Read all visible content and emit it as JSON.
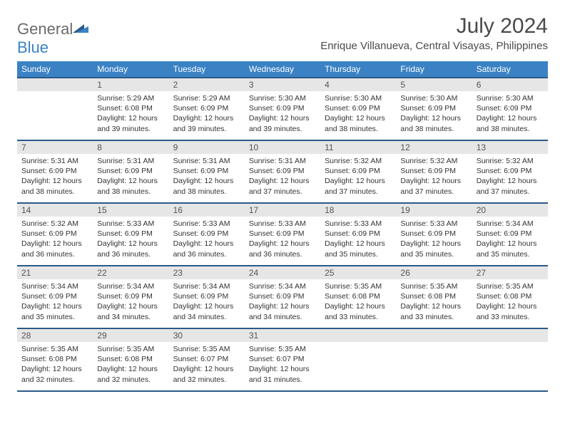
{
  "logo": {
    "text1": "General",
    "text2": "Blue"
  },
  "title": "July 2024",
  "location": "Enrique Villanueva, Central Visayas, Philippines",
  "colors": {
    "header_bg": "#3b82c4",
    "header_text": "#ffffff",
    "row_divider": "#2a5a8a",
    "daynum_bg": "#e6e6e6",
    "logo_gray": "#6b6b6b",
    "logo_blue": "#3b82c4"
  },
  "weekdays": [
    "Sunday",
    "Monday",
    "Tuesday",
    "Wednesday",
    "Thursday",
    "Friday",
    "Saturday"
  ],
  "start_offset": 1,
  "days": [
    {
      "n": 1,
      "sunrise": "5:29 AM",
      "sunset": "6:08 PM",
      "daylight": "12 hours and 39 minutes."
    },
    {
      "n": 2,
      "sunrise": "5:29 AM",
      "sunset": "6:09 PM",
      "daylight": "12 hours and 39 minutes."
    },
    {
      "n": 3,
      "sunrise": "5:30 AM",
      "sunset": "6:09 PM",
      "daylight": "12 hours and 39 minutes."
    },
    {
      "n": 4,
      "sunrise": "5:30 AM",
      "sunset": "6:09 PM",
      "daylight": "12 hours and 38 minutes."
    },
    {
      "n": 5,
      "sunrise": "5:30 AM",
      "sunset": "6:09 PM",
      "daylight": "12 hours and 38 minutes."
    },
    {
      "n": 6,
      "sunrise": "5:30 AM",
      "sunset": "6:09 PM",
      "daylight": "12 hours and 38 minutes."
    },
    {
      "n": 7,
      "sunrise": "5:31 AM",
      "sunset": "6:09 PM",
      "daylight": "12 hours and 38 minutes."
    },
    {
      "n": 8,
      "sunrise": "5:31 AM",
      "sunset": "6:09 PM",
      "daylight": "12 hours and 38 minutes."
    },
    {
      "n": 9,
      "sunrise": "5:31 AM",
      "sunset": "6:09 PM",
      "daylight": "12 hours and 38 minutes."
    },
    {
      "n": 10,
      "sunrise": "5:31 AM",
      "sunset": "6:09 PM",
      "daylight": "12 hours and 37 minutes."
    },
    {
      "n": 11,
      "sunrise": "5:32 AM",
      "sunset": "6:09 PM",
      "daylight": "12 hours and 37 minutes."
    },
    {
      "n": 12,
      "sunrise": "5:32 AM",
      "sunset": "6:09 PM",
      "daylight": "12 hours and 37 minutes."
    },
    {
      "n": 13,
      "sunrise": "5:32 AM",
      "sunset": "6:09 PM",
      "daylight": "12 hours and 37 minutes."
    },
    {
      "n": 14,
      "sunrise": "5:32 AM",
      "sunset": "6:09 PM",
      "daylight": "12 hours and 36 minutes."
    },
    {
      "n": 15,
      "sunrise": "5:33 AM",
      "sunset": "6:09 PM",
      "daylight": "12 hours and 36 minutes."
    },
    {
      "n": 16,
      "sunrise": "5:33 AM",
      "sunset": "6:09 PM",
      "daylight": "12 hours and 36 minutes."
    },
    {
      "n": 17,
      "sunrise": "5:33 AM",
      "sunset": "6:09 PM",
      "daylight": "12 hours and 36 minutes."
    },
    {
      "n": 18,
      "sunrise": "5:33 AM",
      "sunset": "6:09 PM",
      "daylight": "12 hours and 35 minutes."
    },
    {
      "n": 19,
      "sunrise": "5:33 AM",
      "sunset": "6:09 PM",
      "daylight": "12 hours and 35 minutes."
    },
    {
      "n": 20,
      "sunrise": "5:34 AM",
      "sunset": "6:09 PM",
      "daylight": "12 hours and 35 minutes."
    },
    {
      "n": 21,
      "sunrise": "5:34 AM",
      "sunset": "6:09 PM",
      "daylight": "12 hours and 35 minutes."
    },
    {
      "n": 22,
      "sunrise": "5:34 AM",
      "sunset": "6:09 PM",
      "daylight": "12 hours and 34 minutes."
    },
    {
      "n": 23,
      "sunrise": "5:34 AM",
      "sunset": "6:09 PM",
      "daylight": "12 hours and 34 minutes."
    },
    {
      "n": 24,
      "sunrise": "5:34 AM",
      "sunset": "6:09 PM",
      "daylight": "12 hours and 34 minutes."
    },
    {
      "n": 25,
      "sunrise": "5:35 AM",
      "sunset": "6:08 PM",
      "daylight": "12 hours and 33 minutes."
    },
    {
      "n": 26,
      "sunrise": "5:35 AM",
      "sunset": "6:08 PM",
      "daylight": "12 hours and 33 minutes."
    },
    {
      "n": 27,
      "sunrise": "5:35 AM",
      "sunset": "6:08 PM",
      "daylight": "12 hours and 33 minutes."
    },
    {
      "n": 28,
      "sunrise": "5:35 AM",
      "sunset": "6:08 PM",
      "daylight": "12 hours and 32 minutes."
    },
    {
      "n": 29,
      "sunrise": "5:35 AM",
      "sunset": "6:08 PM",
      "daylight": "12 hours and 32 minutes."
    },
    {
      "n": 30,
      "sunrise": "5:35 AM",
      "sunset": "6:07 PM",
      "daylight": "12 hours and 32 minutes."
    },
    {
      "n": 31,
      "sunrise": "5:35 AM",
      "sunset": "6:07 PM",
      "daylight": "12 hours and 31 minutes."
    }
  ],
  "labels": {
    "sunrise": "Sunrise:",
    "sunset": "Sunset:",
    "daylight": "Daylight:"
  }
}
